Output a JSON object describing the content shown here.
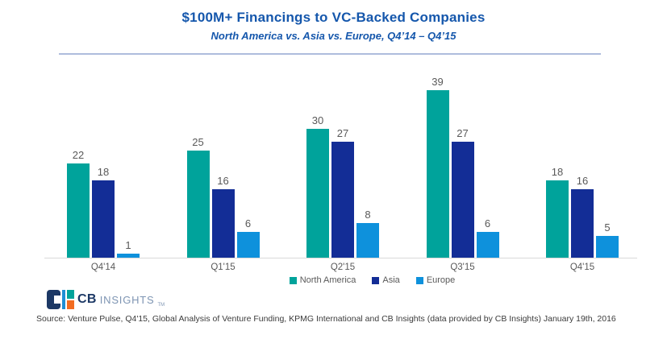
{
  "header": {
    "title": "$100M+ Financings to VC-Backed Companies",
    "subtitle": "North America vs. Asia vs. Europe, Q4’14 – Q4’15"
  },
  "chart_data": {
    "type": "bar",
    "categories": [
      "Q4'14",
      "Q1'15",
      "Q2'15",
      "Q3'15",
      "Q4'15"
    ],
    "series": [
      {
        "name": "North America",
        "color": "#00A39B",
        "values": [
          22,
          25,
          30,
          39,
          18
        ]
      },
      {
        "name": "Asia",
        "color": "#132D96",
        "values": [
          18,
          16,
          27,
          27,
          16
        ]
      },
      {
        "name": "Europe",
        "color": "#0E91DC",
        "values": [
          1,
          6,
          8,
          6,
          5
        ]
      }
    ],
    "title": "$100M+ Financings to VC-Backed Companies",
    "subtitle": "North America vs. Asia vs. Europe, Q4'14 – Q4'15",
    "xlabel": "",
    "ylabel": "",
    "ylim": [
      0,
      39
    ],
    "grid": false,
    "legend_position": "bottom-center",
    "data_labels": true
  },
  "footer": {
    "logo_cb": "CB",
    "logo_insights": "INSIGHTS",
    "logo_tm": "TM",
    "source": "Source: Venture Pulse, Q4'15, Global Analysis of Venture Funding, KPMG International and CB Insights (data provided by CB Insights) January 19th, 2016"
  },
  "colors": {
    "title_blue": "#1557AC",
    "divider": "#AEBCDD",
    "axis_line": "#D9D9D9",
    "text_gray": "#595959",
    "source_text": "#3B3B3B",
    "logo_navy": "#1C3865",
    "logo_blue": "#1E8FD5",
    "logo_teal": "#00A39B",
    "logo_orange": "#F26C21",
    "logo_insights_text": "#7E95B3"
  }
}
